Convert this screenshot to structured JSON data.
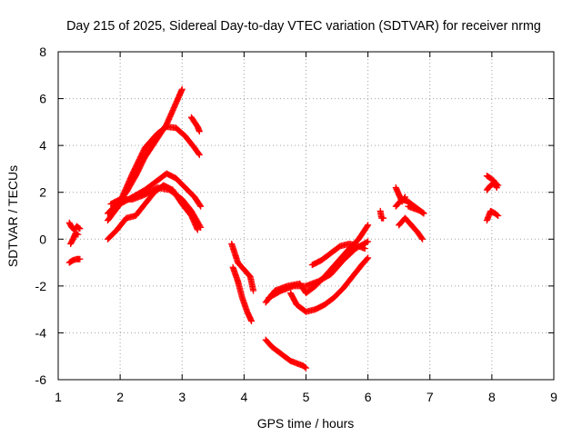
{
  "chart_data": {
    "type": "scatter",
    "title": "Day 215 of 2025, Sidereal Day-to-day VTEC variation (SDTVAR) for receiver nrmg",
    "xlabel": "GPS time / hours",
    "ylabel": "SDTVAR / TECUs",
    "xlim": [
      1,
      9
    ],
    "ylim": [
      -6,
      8
    ],
    "xticks": [
      "1",
      "2",
      "3",
      "4",
      "5",
      "6",
      "7",
      "8",
      "9"
    ],
    "yticks": [
      "-6",
      "-4",
      "-2",
      "0",
      "2",
      "4",
      "6",
      "8"
    ],
    "grid": true,
    "marker": "+",
    "color": "#ff0000",
    "series": [
      {
        "x": [
          1.18,
          1.22,
          1.26,
          1.3,
          1.35
        ],
        "y": [
          0.7,
          0.5,
          0.4,
          0.55,
          0.45
        ]
      },
      {
        "x": [
          1.2,
          1.24,
          1.28,
          1.32
        ],
        "y": [
          -0.2,
          0.0,
          0.25,
          0.2
        ]
      },
      {
        "x": [
          1.18,
          1.24,
          1.3,
          1.35
        ],
        "y": [
          -1.0,
          -0.9,
          -0.85,
          -0.85
        ]
      },
      {
        "x": [
          1.8,
          1.95,
          2.1,
          2.25,
          2.4,
          2.55,
          2.65,
          2.75,
          2.85,
          2.95,
          3.0
        ],
        "y": [
          1.1,
          1.5,
          2.0,
          2.7,
          3.5,
          4.1,
          4.5,
          4.9,
          5.5,
          6.1,
          6.4
        ]
      },
      {
        "x": [
          1.85,
          2.0,
          2.2,
          2.4,
          2.6,
          2.75,
          2.9,
          3.05,
          3.2,
          3.28
        ],
        "y": [
          1.2,
          1.6,
          2.8,
          3.9,
          4.5,
          4.8,
          4.75,
          4.4,
          3.9,
          3.6
        ]
      },
      {
        "x": [
          1.8,
          2.0,
          2.2,
          2.4,
          2.6,
          2.75,
          2.9,
          3.05,
          3.2,
          3.3
        ],
        "y": [
          0.8,
          1.5,
          1.8,
          2.1,
          2.5,
          2.8,
          2.6,
          2.2,
          1.8,
          1.4
        ]
      },
      {
        "x": [
          1.85,
          2.0,
          2.2,
          2.4,
          2.6,
          2.8,
          3.0,
          3.15,
          3.3
        ],
        "y": [
          1.5,
          1.7,
          1.7,
          1.9,
          2.2,
          2.1,
          1.7,
          1.2,
          0.5
        ]
      },
      {
        "x": [
          1.8,
          1.95,
          2.1,
          2.25,
          2.4,
          2.55,
          2.7,
          2.85,
          3.0,
          3.15,
          3.25
        ],
        "y": [
          0.0,
          0.4,
          0.9,
          1.0,
          1.5,
          2.0,
          2.3,
          2.1,
          1.5,
          1.0,
          0.4
        ]
      },
      {
        "x": [
          3.15,
          3.2,
          3.25,
          3.28
        ],
        "y": [
          5.2,
          5.0,
          4.8,
          4.6
        ]
      },
      {
        "x": [
          3.8,
          3.9,
          4.0,
          4.1,
          4.15
        ],
        "y": [
          -0.2,
          -1.0,
          -1.3,
          -1.6,
          -2.2
        ]
      },
      {
        "x": [
          3.82,
          3.9,
          3.97,
          4.05,
          4.12
        ],
        "y": [
          -1.2,
          -1.8,
          -2.5,
          -3.1,
          -3.5
        ]
      },
      {
        "x": [
          4.35,
          4.45,
          4.55,
          4.65,
          4.75,
          4.85,
          4.95,
          5.0
        ],
        "y": [
          -4.3,
          -4.6,
          -4.8,
          -5.0,
          -5.2,
          -5.3,
          -5.4,
          -5.5
        ]
      },
      {
        "x": [
          4.35,
          4.5,
          4.7,
          4.9,
          5.0,
          5.15,
          5.3,
          5.5,
          5.7,
          5.85,
          6.0
        ],
        "y": [
          -2.7,
          -2.2,
          -2.0,
          -1.9,
          -2.3,
          -2.0,
          -1.6,
          -1.0,
          -0.4,
          0.0,
          0.6
        ]
      },
      {
        "x": [
          4.4,
          4.6,
          4.8,
          5.0,
          5.2,
          5.4,
          5.6,
          5.8,
          6.0
        ],
        "y": [
          -2.5,
          -2.2,
          -2.0,
          -2.0,
          -1.8,
          -1.5,
          -0.9,
          -0.4,
          -0.1
        ]
      },
      {
        "x": [
          4.75,
          4.85,
          5.0,
          5.15,
          5.3,
          5.45,
          5.6,
          5.75,
          5.9,
          6.0
        ],
        "y": [
          -2.3,
          -2.8,
          -3.1,
          -3.0,
          -2.8,
          -2.5,
          -2.1,
          -1.6,
          -1.1,
          -0.8
        ]
      },
      {
        "x": [
          5.1,
          5.25,
          5.4,
          5.55,
          5.7,
          5.85,
          5.95
        ],
        "y": [
          -1.1,
          -0.9,
          -0.6,
          -0.3,
          -0.2,
          -0.3,
          -0.4
        ]
      },
      {
        "x": [
          6.2,
          6.22,
          6.25
        ],
        "y": [
          1.2,
          0.9,
          0.9
        ]
      },
      {
        "x": [
          6.45,
          6.5,
          6.55,
          6.6
        ],
        "y": [
          2.2,
          1.9,
          1.6,
          1.8
        ]
      },
      {
        "x": [
          6.45,
          6.55,
          6.65,
          6.75,
          6.85,
          6.9
        ],
        "y": [
          1.4,
          1.7,
          1.6,
          1.4,
          1.2,
          1.1
        ]
      },
      {
        "x": [
          6.5,
          6.6,
          6.7,
          6.8,
          6.88
        ],
        "y": [
          0.6,
          0.9,
          0.6,
          0.3,
          0.0
        ]
      },
      {
        "x": [
          6.65,
          6.75,
          6.85,
          6.9
        ],
        "y": [
          1.4,
          1.3,
          1.2,
          1.1
        ]
      },
      {
        "x": [
          7.92,
          7.98,
          8.03,
          8.08
        ],
        "y": [
          2.7,
          2.6,
          2.5,
          2.2
        ]
      },
      {
        "x": [
          7.92,
          7.98,
          8.05,
          8.1
        ],
        "y": [
          2.1,
          2.3,
          2.4,
          2.3
        ]
      },
      {
        "x": [
          7.92,
          7.98,
          8.05,
          8.1
        ],
        "y": [
          0.8,
          1.2,
          1.1,
          1.0
        ]
      }
    ]
  }
}
